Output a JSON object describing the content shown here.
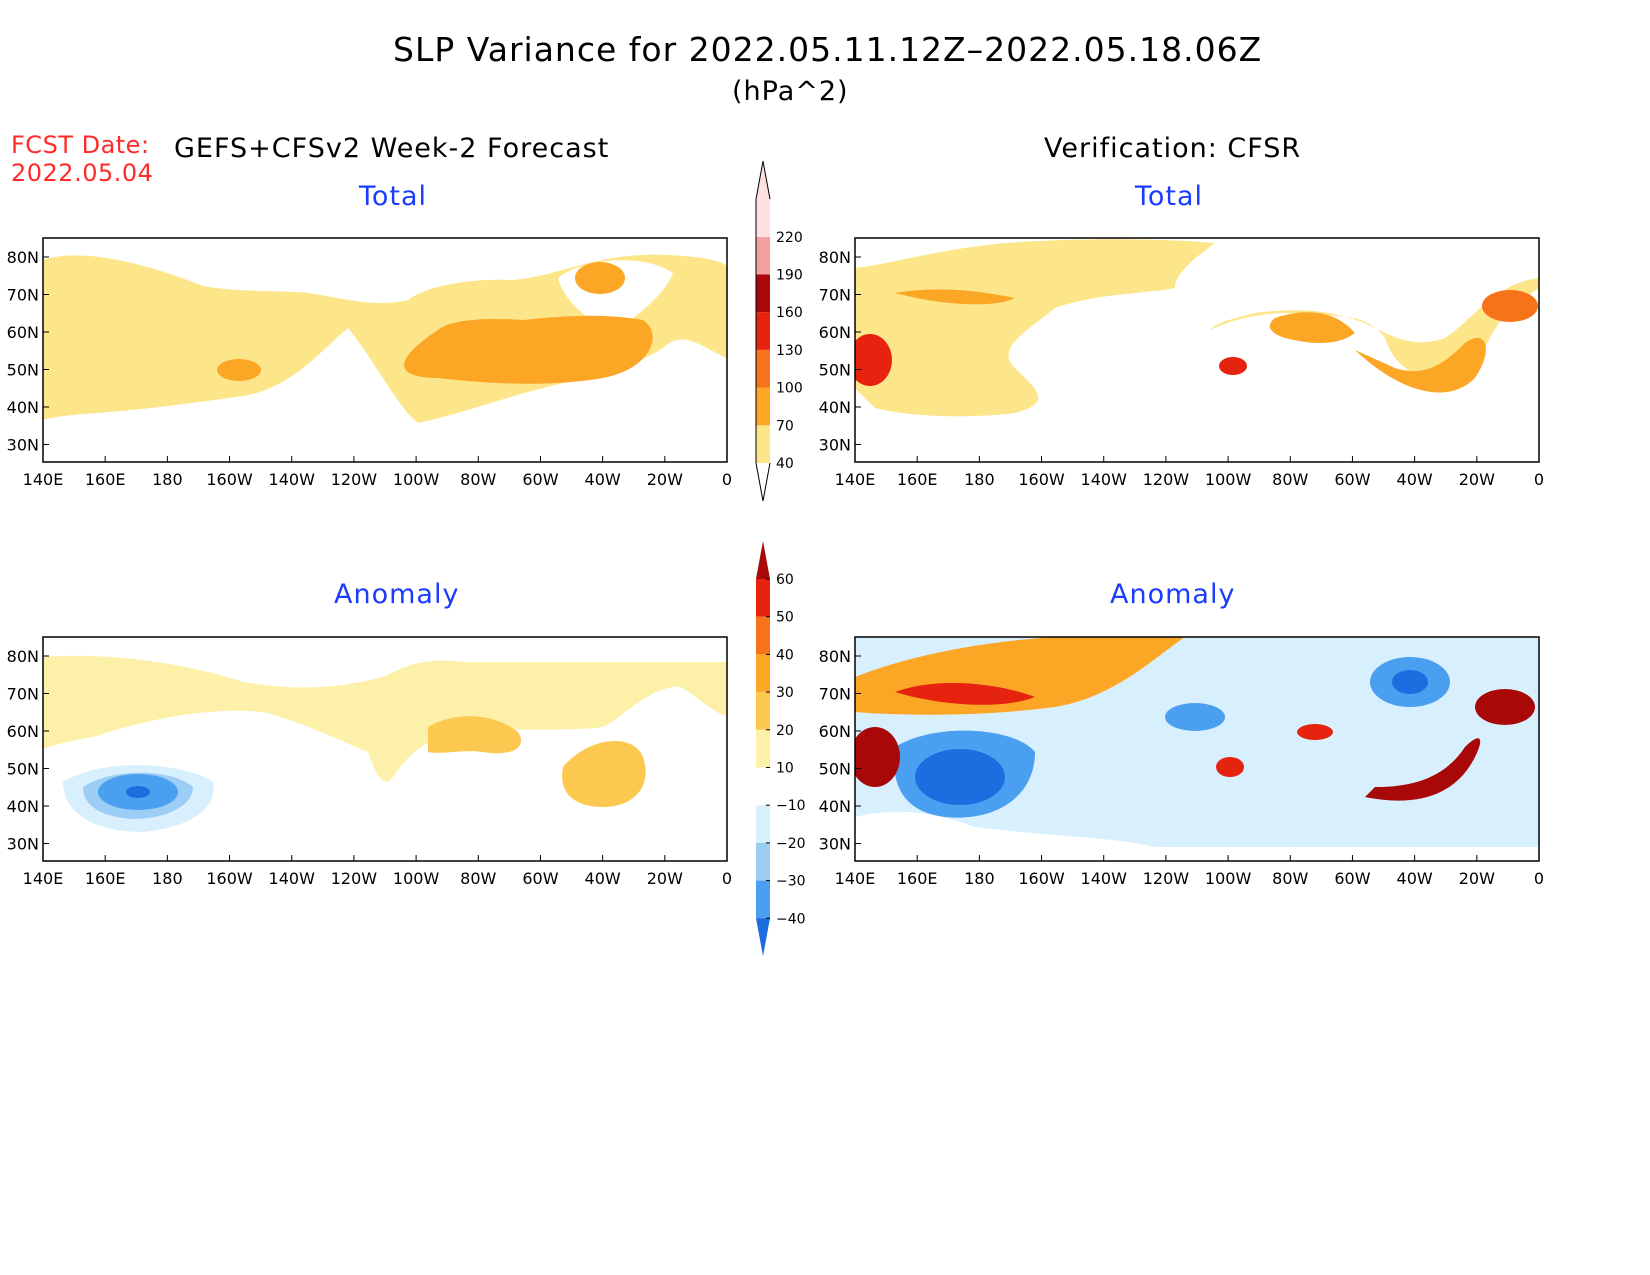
{
  "header": {
    "title": "SLP Variance for 2022.05.11.12Z–2022.05.18.06Z",
    "units": "(hPa^2)",
    "fcst_label": "FCST Date:",
    "fcst_date": "2022.05.04",
    "left_header": "GEFS+CFSv2 Week-2 Forecast",
    "right_header": "Verification: CFSR"
  },
  "panels": {
    "forecast_total_title": "Total",
    "verification_total_title": "Total",
    "forecast_anomaly_title": "Anomaly",
    "verification_anomaly_title": "Anomaly"
  },
  "axes": {
    "lon_labels": [
      "140E",
      "160E",
      "180",
      "160W",
      "140W",
      "120W",
      "100W",
      "80W",
      "60W",
      "40W",
      "20W",
      "0"
    ],
    "lat_labels": [
      "80N",
      "70N",
      "60N",
      "50N",
      "40N",
      "30N"
    ]
  },
  "colorbars": {
    "total": {
      "levels": [
        "40",
        "70",
        "100",
        "130",
        "160",
        "190",
        "220"
      ],
      "colors": [
        "#fde58a",
        "#fca625",
        "#f6731a",
        "#e5230e",
        "#a80808",
        "#f4a2a0",
        "#fde1e1"
      ]
    },
    "anomaly": {
      "levels": [
        "60",
        "50",
        "40",
        "30",
        "20",
        "10",
        "−10",
        "−20",
        "−30",
        "−40"
      ],
      "colors": [
        "#a80808",
        "#e5230e",
        "#f6731a",
        "#fca625",
        "#fdc84f",
        "#fdf0a8",
        "#ffffff",
        "#d8f0fd",
        "#9ccdf4",
        "#4a9ff0",
        "#1e6de0"
      ]
    }
  },
  "colors": {
    "title_text": "#000000",
    "fcst_text": "#ff2a2a",
    "panel_title": "#1a3cff"
  }
}
